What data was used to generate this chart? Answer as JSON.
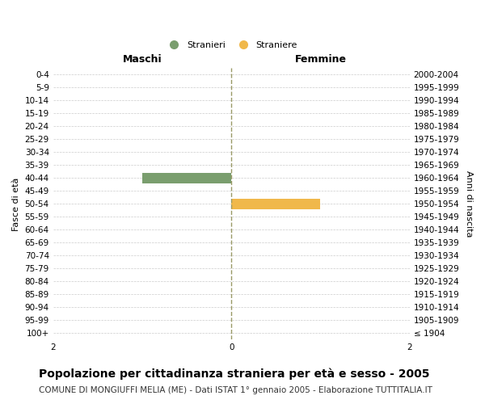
{
  "age_groups": [
    "100+",
    "95-99",
    "90-94",
    "85-89",
    "80-84",
    "75-79",
    "70-74",
    "65-69",
    "60-64",
    "55-59",
    "50-54",
    "45-49",
    "40-44",
    "35-39",
    "30-34",
    "25-29",
    "20-24",
    "15-19",
    "10-14",
    "5-9",
    "0-4"
  ],
  "birth_years": [
    "≤ 1904",
    "1905-1909",
    "1910-1914",
    "1915-1919",
    "1920-1924",
    "1925-1929",
    "1930-1934",
    "1935-1939",
    "1940-1944",
    "1945-1949",
    "1950-1954",
    "1955-1959",
    "1960-1964",
    "1965-1969",
    "1970-1974",
    "1975-1979",
    "1980-1984",
    "1985-1989",
    "1990-1994",
    "1995-1999",
    "2000-2004"
  ],
  "male_values": [
    0,
    0,
    0,
    0,
    0,
    0,
    0,
    0,
    0,
    0,
    0,
    0,
    -1,
    0,
    0,
    0,
    0,
    0,
    0,
    0,
    0
  ],
  "female_values": [
    0,
    0,
    0,
    0,
    0,
    0,
    0,
    0,
    0,
    0,
    1,
    0,
    0,
    0,
    0,
    0,
    0,
    0,
    0,
    0,
    0
  ],
  "male_color": "#7a9e6e",
  "female_color": "#f0b84b",
  "xlim": [
    -2,
    2
  ],
  "ylabel_left": "Fasce di età",
  "ylabel_right": "Anni di nascita",
  "header_left": "Maschi",
  "header_right": "Femmine",
  "legend_labels": [
    "Stranieri",
    "Straniere"
  ],
  "title": "Popolazione per cittadinanza straniera per età e sesso - 2005",
  "subtitle": "COMUNE DI MONGIUFFI MELIA (ME) - Dati ISTAT 1° gennaio 2005 - Elaborazione TUTTITALIA.IT",
  "background_color": "#ffffff",
  "grid_color": "#cccccc",
  "bar_height": 0.8,
  "dashed_line_color": "#999966",
  "title_fontsize": 10,
  "subtitle_fontsize": 7.5,
  "tick_fontsize": 7.5,
  "label_fontsize": 8,
  "header_fontsize": 9
}
